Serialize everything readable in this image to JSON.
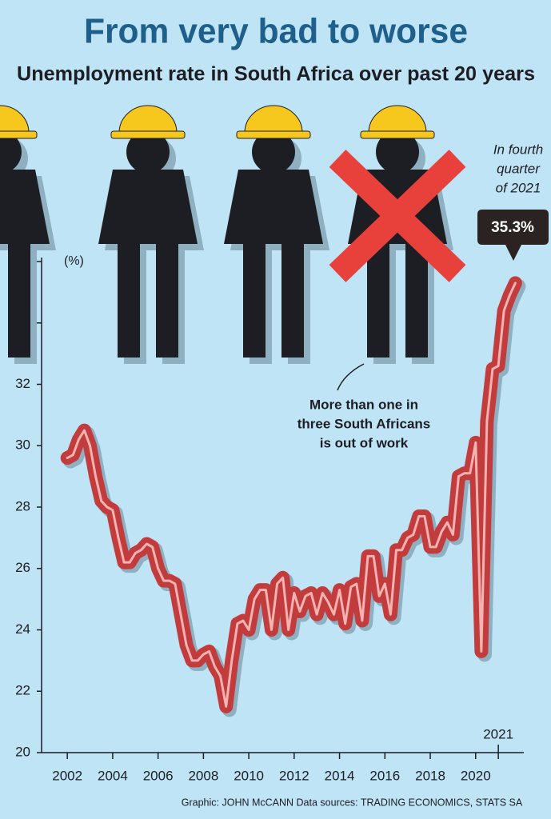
{
  "chart_data": {
    "type": "line",
    "title": "From very bad to worse",
    "subtitle": "Unemployment rate in South Africa over past 20 years",
    "ylabel": "(%)",
    "x": [
      2002,
      2002.25,
      2002.5,
      2002.75,
      2003,
      2003.25,
      2003.5,
      2003.75,
      2004,
      2004.25,
      2004.5,
      2004.75,
      2005,
      2005.25,
      2005.5,
      2005.75,
      2006,
      2006.25,
      2006.5,
      2006.75,
      2007,
      2007.25,
      2007.5,
      2007.75,
      2008,
      2008.25,
      2008.5,
      2008.75,
      2009,
      2009.25,
      2009.5,
      2009.75,
      2010,
      2010.25,
      2010.5,
      2010.75,
      2011,
      2011.25,
      2011.5,
      2011.75,
      2012,
      2012.25,
      2012.5,
      2012.75,
      2013,
      2013.25,
      2013.5,
      2013.75,
      2014,
      2014.25,
      2014.5,
      2014.75,
      2015,
      2015.25,
      2015.5,
      2015.75,
      2016,
      2016.25,
      2016.5,
      2016.75,
      2017,
      2017.25,
      2017.5,
      2017.75,
      2018,
      2018.25,
      2018.5,
      2018.75,
      2019,
      2019.25,
      2019.5,
      2019.75,
      2020,
      2020.25,
      2020.5,
      2020.75,
      2021,
      2021.25,
      2021.5,
      2021.75
    ],
    "series": [
      {
        "name": "Unemployment rate",
        "color": "#c23b3d",
        "values": [
          29.6,
          29.7,
          30.2,
          30.5,
          30.0,
          29.0,
          28.2,
          28.0,
          27.9,
          27.0,
          26.2,
          26.2,
          26.5,
          26.6,
          26.8,
          26.7,
          26.0,
          25.6,
          25.6,
          25.5,
          24.5,
          23.5,
          23.0,
          23.0,
          23.2,
          23.3,
          22.8,
          22.5,
          21.5,
          23.0,
          24.2,
          24.3,
          24.0,
          25.0,
          25.3,
          25.3,
          24.0,
          25.5,
          25.7,
          24.0,
          25.2,
          24.6,
          25.1,
          25.2,
          24.5,
          25.2,
          24.9,
          24.5,
          25.3,
          24.2,
          25.4,
          25.5,
          24.3,
          26.4,
          26.4,
          25.1,
          25.5,
          24.5,
          26.6,
          26.6,
          27.0,
          27.1,
          27.7,
          27.7,
          26.7,
          26.7,
          27.2,
          27.5,
          27.1,
          29.0,
          29.1,
          29.1,
          30.1,
          23.3,
          30.8,
          32.5,
          32.6,
          34.4,
          34.9,
          35.3
        ]
      }
    ],
    "xlim": [
      2001.5,
      2022.3
    ],
    "xticks": [
      2002,
      2004,
      2006,
      2008,
      2010,
      2012,
      2014,
      2016,
      2018,
      2020,
      2021
    ],
    "ylim": [
      20,
      36
    ],
    "yticks": [
      20,
      22,
      24,
      26,
      28,
      30,
      32,
      34,
      36
    ],
    "callout": "35.3%",
    "annotations": [
      [
        "In fourth",
        "quarter",
        "of 2021"
      ],
      [
        "More than one in",
        "three South Africans",
        "is out of work"
      ]
    ],
    "footer": "Graphic: JOHN McCANN  Data sources: TRADING ECONOMICS, STATS SA"
  }
}
